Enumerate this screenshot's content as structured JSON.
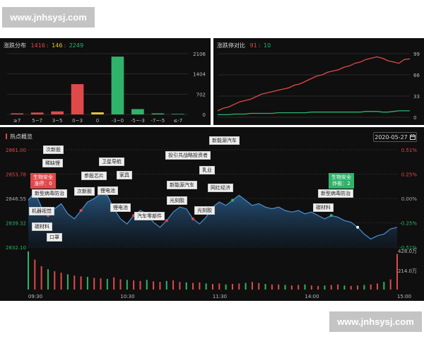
{
  "watermark": {
    "text": "www.jnhsysj.com"
  },
  "distribution": {
    "title": "涨跌分布",
    "up": "1416",
    "flat": "146",
    "down": "2249",
    "sep": ":",
    "chart_data": {
      "type": "bar",
      "categories": [
        "≥7",
        "5~7",
        "3~5",
        "0~3",
        "0",
        "-3~0",
        "-5~-3",
        "-7~-5",
        "≤-7"
      ],
      "values": [
        38,
        64,
        105,
        1050,
        72,
        2004,
        185,
        35,
        18
      ],
      "colors": [
        "#e0494a",
        "#e0494a",
        "#e0494a",
        "#e0494a",
        "#e8c33a",
        "#2fb36b",
        "#2fb36b",
        "#2fb36b",
        "#2fb36b"
      ],
      "yticks": [
        "0",
        "702",
        "1404",
        "2106"
      ],
      "ylim": [
        0,
        2106
      ]
    }
  },
  "ratio": {
    "title": "涨跌停对比",
    "up": "91",
    "down": "10",
    "sep": ":",
    "chart_data": {
      "type": "line",
      "yticks": [
        "0",
        "33",
        "66",
        "99"
      ],
      "ylim": [
        0,
        99
      ],
      "series": [
        {
          "color": "#e0494a",
          "values": [
            10,
            14,
            16,
            20,
            24,
            26,
            28,
            32,
            36,
            38,
            40,
            42,
            44,
            46,
            50,
            52,
            56,
            60,
            64,
            66,
            70,
            72,
            74,
            78,
            80,
            84,
            86,
            90,
            92,
            94,
            92,
            88,
            86,
            84,
            90,
            91
          ]
        },
        {
          "color": "#2fb36b",
          "values": [
            4,
            4,
            4,
            5,
            5,
            5,
            6,
            6,
            6,
            6,
            6,
            7,
            7,
            7,
            7,
            7,
            7,
            8,
            8,
            8,
            8,
            8,
            8,
            8,
            8,
            8,
            8,
            9,
            9,
            9,
            8,
            8,
            9,
            10,
            10,
            10
          ]
        }
      ]
    }
  },
  "hot": {
    "title": "热点概览",
    "date": "2020-05-27",
    "calendar_icon": "calendar-icon",
    "chart_data": {
      "type": "area",
      "y_left_ticks": [
        "2861.00",
        "2853.78",
        "2846.55",
        "2839.32",
        "2832.10"
      ],
      "y_right_ticks": [
        "0.51%",
        "0.25%",
        "0.00%",
        "-0.25%",
        "-0.51%"
      ],
      "ylim": [
        2832.1,
        2861.0
      ],
      "x_ticks": [
        "09:30",
        "10:30",
        "11:30",
        "14:00",
        "15:00"
      ],
      "volume_ticks": [
        "428.0万",
        "214.0万"
      ],
      "series": [
        {
          "name": "index",
          "values": [
            2846.0,
            2848.5,
            2844.0,
            2841.5,
            2843.5,
            2845.0,
            2842.0,
            2840.5,
            2843.0,
            2845.5,
            2846.5,
            2848.0,
            2847.5,
            2843.5,
            2840.5,
            2839.0,
            2841.5,
            2843.0,
            2842.0,
            2839.5,
            2838.0,
            2840.0,
            2842.5,
            2844.0,
            2843.5,
            2840.5,
            2839.0,
            2841.0,
            2844.0,
            2845.5,
            2844.5,
            2846.0,
            2847.5,
            2846.0,
            2844.5,
            2845.0,
            2844.0,
            2843.5,
            2844.0,
            2843.0,
            2842.5,
            2843.0,
            2842.0,
            2842.5,
            2841.5,
            2840.5,
            2841.5,
            2841.0,
            2840.0,
            2839.5,
            2838.0,
            2836.0,
            2834.5,
            2835.5,
            2836.0,
            2837.5,
            2838.0
          ]
        }
      ],
      "volume": [
        150,
        118,
        92,
        80,
        72,
        66,
        60,
        55,
        52,
        50,
        46,
        44,
        42,
        48,
        40,
        38,
        36,
        34,
        38,
        32,
        30,
        34,
        36,
        30,
        28,
        26,
        28,
        24,
        22,
        24,
        20,
        22,
        24,
        26,
        30,
        26,
        22,
        20,
        20,
        18,
        16,
        18,
        20,
        16,
        14,
        16,
        18,
        20,
        16,
        14,
        16,
        18,
        20,
        24,
        30,
        40,
        140
      ]
    },
    "tags": [
      {
        "label": "次新股"
      },
      {
        "label": "稀缺锂"
      },
      {
        "label": "生物安全"
      },
      {
        "label": "涨停：0"
      },
      {
        "label": "新型病毒防治"
      },
      {
        "label": "次新股"
      },
      {
        "label": "参股芯片"
      },
      {
        "label": "卫星导航"
      },
      {
        "label": "家具"
      },
      {
        "label": "锂电池"
      },
      {
        "label": "机器视觉"
      },
      {
        "label": "碳材料"
      },
      {
        "label": "口罩"
      },
      {
        "label": "锂电池"
      },
      {
        "label": "汽车零部件"
      },
      {
        "label": "投引共战略投资者"
      },
      {
        "label": "新能源汽车"
      },
      {
        "label": "乳业"
      },
      {
        "label": "新能源汽车"
      },
      {
        "label": "光刻胶"
      },
      {
        "label": "网红经济"
      },
      {
        "label": "光刻胶"
      },
      {
        "label": "生物安全"
      },
      {
        "label": "炸板：2"
      },
      {
        "label": "新型病毒防治"
      },
      {
        "label": "碳材料"
      }
    ]
  }
}
